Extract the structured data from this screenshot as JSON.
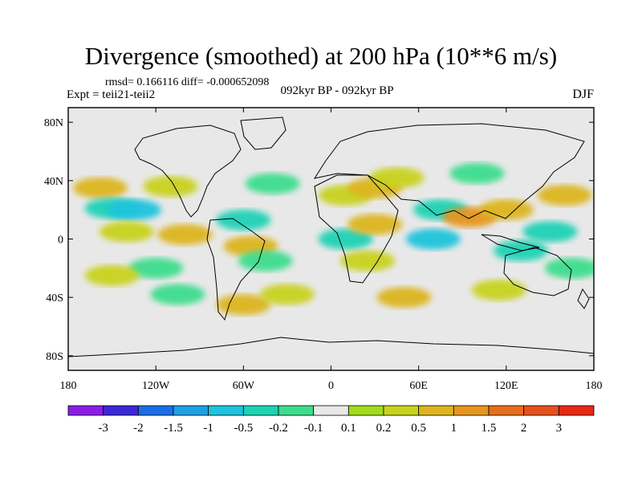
{
  "title": "Divergence (smoothed) at 200 hPa (10**6 m/s)",
  "stats_text": "rmsd= 0.166116 diff= -0.000652098",
  "experiment_text": "Expt = teii21-teii2",
  "period_text": "092kyr BP - 092kyr BP",
  "season_text": "DJF",
  "axes": {
    "lat_ticks": [
      {
        "value": 80,
        "label": "80N"
      },
      {
        "value": 40,
        "label": "40N"
      },
      {
        "value": 0,
        "label": "0"
      },
      {
        "value": -40,
        "label": "40S"
      },
      {
        "value": -80,
        "label": "80S"
      }
    ],
    "lon_ticks": [
      {
        "value": -180,
        "label": "180"
      },
      {
        "value": -120,
        "label": "120W"
      },
      {
        "value": -60,
        "label": "60W"
      },
      {
        "value": 0,
        "label": "0"
      },
      {
        "value": 60,
        "label": "60E"
      },
      {
        "value": 120,
        "label": "120E"
      },
      {
        "value": 180,
        "label": "180"
      }
    ],
    "lon_range": [
      -180,
      180
    ],
    "lat_range": [
      -90,
      90
    ]
  },
  "colorbar": {
    "colors": [
      "#8a1ee6",
      "#3c28d8",
      "#1a6ee6",
      "#1ea0e6",
      "#1ec3dc",
      "#1ed2b4",
      "#3cdc8c",
      "#e8e8e8",
      "#a0dc1e",
      "#c8d21e",
      "#dcb41e",
      "#e6961e",
      "#e66e1e",
      "#e6501e",
      "#e62814"
    ],
    "labels": [
      "-3",
      "-2",
      "-1.5",
      "-1",
      "-0.5",
      "-0.2",
      "-0.1",
      "0.1",
      "0.2",
      "0.5",
      "1",
      "1.5",
      "2",
      "3"
    ]
  },
  "chart_data": {
    "type": "heatmap",
    "title": "Divergence (smoothed) at 200 hPa (10**6 m/s)",
    "grid": false,
    "background_value_range": [
      -0.1,
      0.1
    ],
    "fields": [
      {
        "lon": -158,
        "lat": 35,
        "value": 0.5
      },
      {
        "lon": -150,
        "lat": 21,
        "value": -0.5
      },
      {
        "lon": -135,
        "lat": 20,
        "value": -1
      },
      {
        "lon": -110,
        "lat": 36,
        "value": 0.2
      },
      {
        "lon": -140,
        "lat": 5,
        "value": 0.2
      },
      {
        "lon": -100,
        "lat": 3,
        "value": 0.5
      },
      {
        "lon": -120,
        "lat": -20,
        "value": -0.2
      },
      {
        "lon": -150,
        "lat": -25,
        "value": 0.2
      },
      {
        "lon": -105,
        "lat": -38,
        "value": -0.2
      },
      {
        "lon": -60,
        "lat": 13,
        "value": -0.5
      },
      {
        "lon": -55,
        "lat": -5,
        "value": 0.5
      },
      {
        "lon": -45,
        "lat": -15,
        "value": -0.2
      },
      {
        "lon": -60,
        "lat": -45,
        "value": 0.5
      },
      {
        "lon": -30,
        "lat": -38,
        "value": 0.2
      },
      {
        "lon": -40,
        "lat": 38,
        "value": -0.2
      },
      {
        "lon": 10,
        "lat": 30,
        "value": 0.2
      },
      {
        "lon": 30,
        "lat": 35,
        "value": 0.5
      },
      {
        "lon": 10,
        "lat": 0,
        "value": -0.5
      },
      {
        "lon": 30,
        "lat": 10,
        "value": 0.5
      },
      {
        "lon": 25,
        "lat": -15,
        "value": 0.2
      },
      {
        "lon": 50,
        "lat": -40,
        "value": 0.5
      },
      {
        "lon": 70,
        "lat": 0,
        "value": -1
      },
      {
        "lon": 75,
        "lat": 20,
        "value": -0.5
      },
      {
        "lon": 95,
        "lat": 15,
        "value": 1
      },
      {
        "lon": 120,
        "lat": 20,
        "value": 0.5
      },
      {
        "lon": 130,
        "lat": -8,
        "value": -0.5
      },
      {
        "lon": 115,
        "lat": -35,
        "value": 0.2
      },
      {
        "lon": 160,
        "lat": 30,
        "value": 0.5
      },
      {
        "lon": 150,
        "lat": 5,
        "value": -0.5
      },
      {
        "lon": 165,
        "lat": -20,
        "value": -0.2
      },
      {
        "lon": 45,
        "lat": 42,
        "value": 0.2
      },
      {
        "lon": 100,
        "lat": 45,
        "value": -0.2
      }
    ]
  }
}
